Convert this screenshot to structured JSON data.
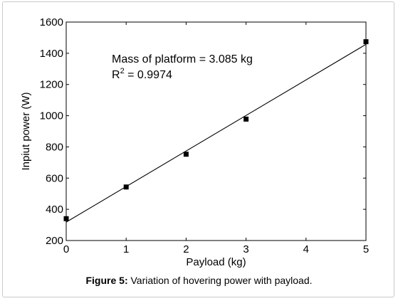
{
  "chart_data": {
    "type": "scatter",
    "xlabel": "Payload (kg)",
    "ylabel": "Inpiut power (W)",
    "xlim": [
      0,
      5
    ],
    "ylim": [
      200,
      1600
    ],
    "xticks": [
      0,
      1,
      2,
      3,
      4,
      5
    ],
    "yticks": [
      200,
      400,
      600,
      800,
      1000,
      1200,
      1400,
      1600
    ],
    "grid": false,
    "series": [
      {
        "marker": "square",
        "color": "#000000",
        "points": [
          {
            "x": 0,
            "y": 340
          },
          {
            "x": 1,
            "y": 543
          },
          {
            "x": 2,
            "y": 753
          },
          {
            "x": 3,
            "y": 978
          },
          {
            "x": 5,
            "y": 1474
          }
        ]
      }
    ],
    "fit_line": {
      "x": [
        0,
        5
      ],
      "y": [
        318,
        1457
      ],
      "color": "#000000"
    },
    "annotations": {
      "mass_text": "Mass of platform = 3.085 kg",
      "r2_prefix": "R",
      "r2_sup": "2",
      "r2_value": " = 0.9974"
    }
  },
  "caption": {
    "label": "Figure 5:",
    "text": " Variation of hovering power with payload."
  }
}
